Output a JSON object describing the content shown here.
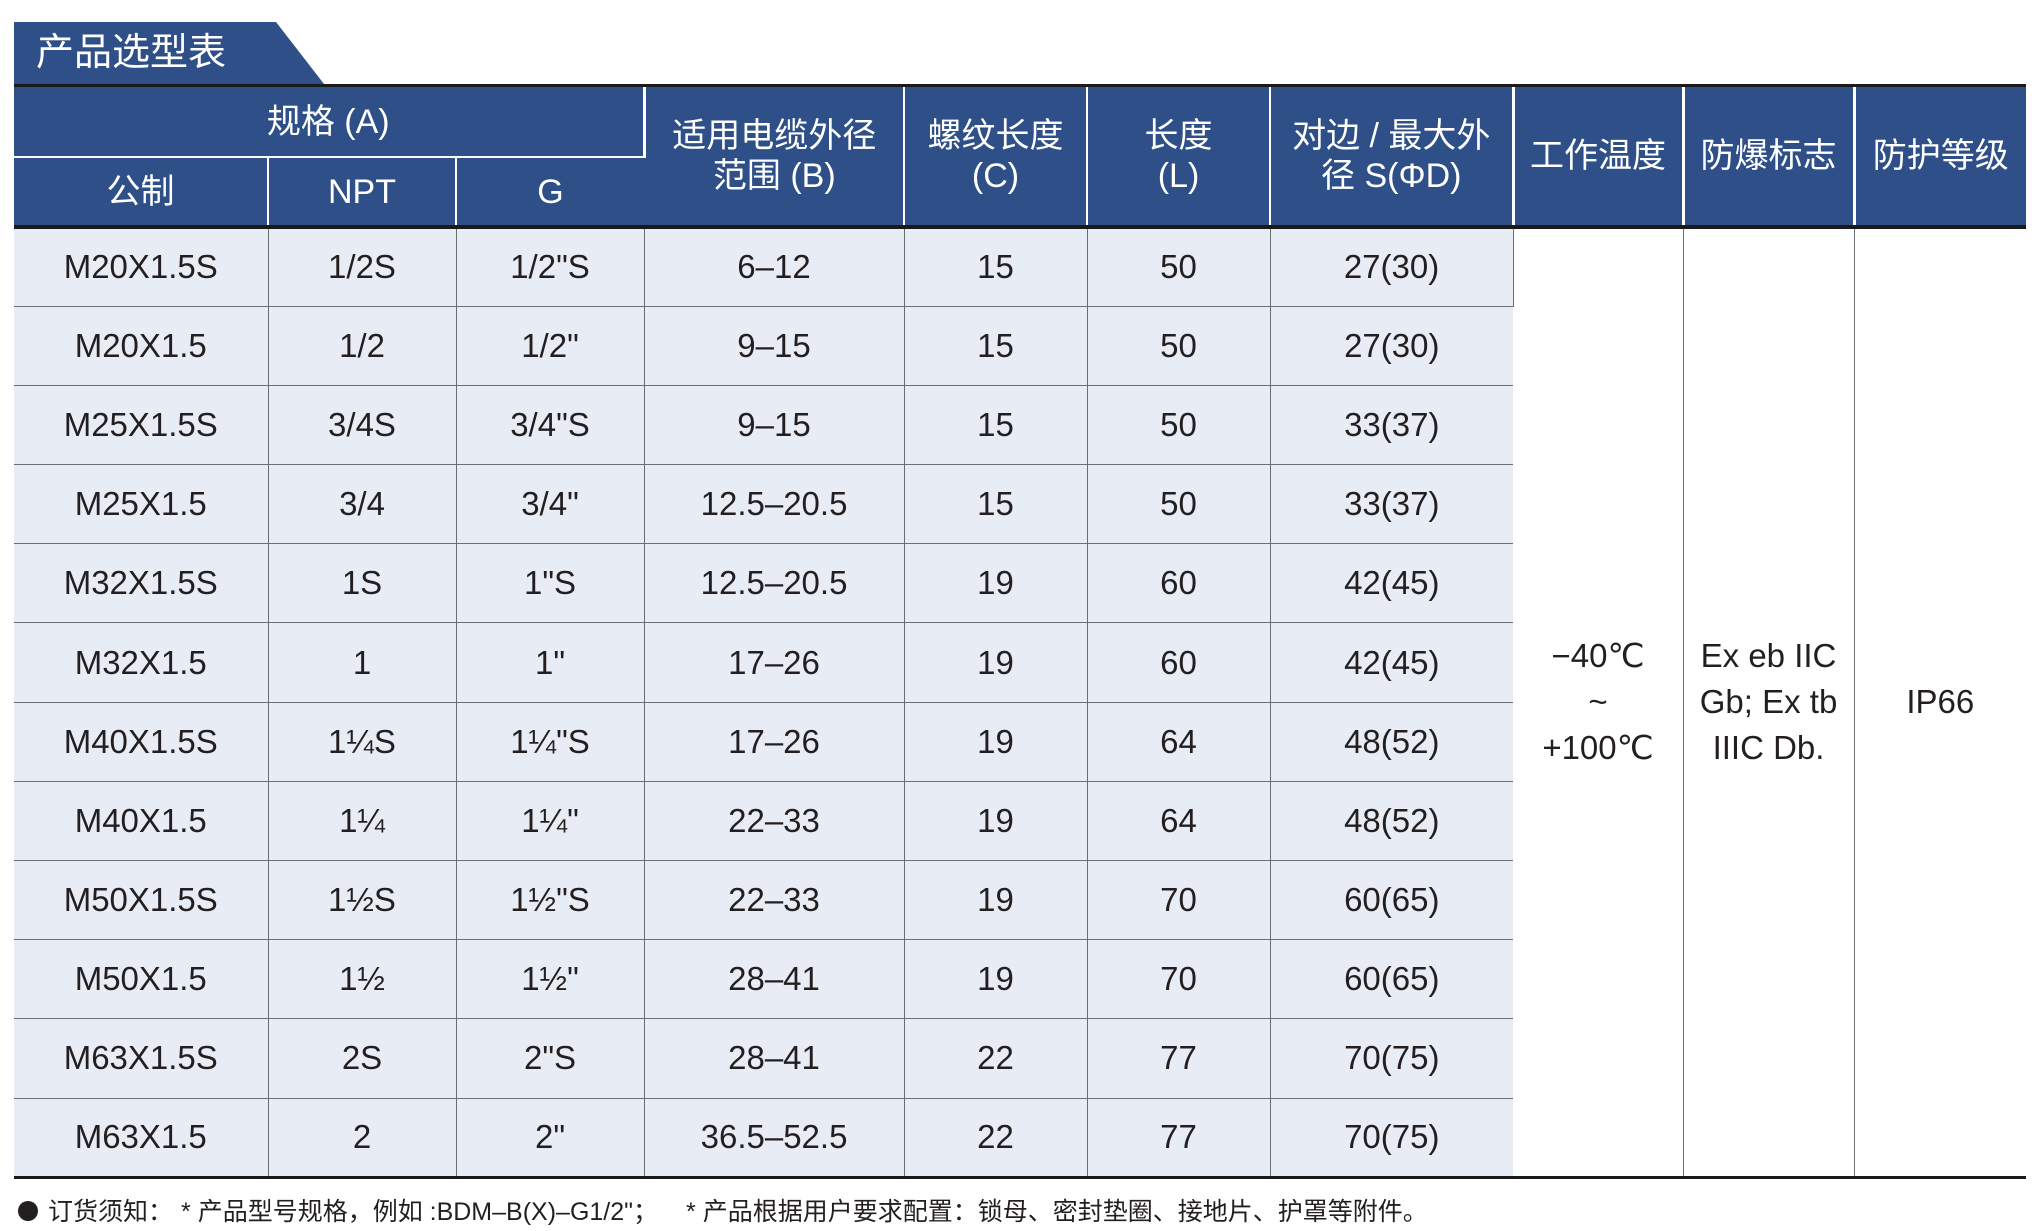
{
  "title": "产品选型表",
  "header": {
    "spec_group": "规格 (A)",
    "spec_cols": [
      "公制",
      "NPT",
      "G"
    ],
    "cable_line1": "适用电缆外径",
    "cable_line2": "范围 (B)",
    "thread_line1": "螺纹长度",
    "thread_line2": "(C)",
    "length_line1": "长度",
    "length_line2": "(L)",
    "across_line1": "对边 / 最大外",
    "across_line2": "径 S(ΦD)",
    "temp": "工作温度",
    "explosion": "防爆标志",
    "protection": "防护等级"
  },
  "rows": [
    {
      "metric": "M20X1.5S",
      "npt": "1/2S",
      "g": "1/2\"S",
      "cable": "6–12",
      "thread": "15",
      "length": "50",
      "across": "27(30)"
    },
    {
      "metric": "M20X1.5",
      "npt": "1/2",
      "g": "1/2\"",
      "cable": "9–15",
      "thread": "15",
      "length": "50",
      "across": "27(30)"
    },
    {
      "metric": "M25X1.5S",
      "npt": "3/4S",
      "g": "3/4\"S",
      "cable": "9–15",
      "thread": "15",
      "length": "50",
      "across": "33(37)"
    },
    {
      "metric": "M25X1.5",
      "npt": "3/4",
      "g": "3/4\"",
      "cable": "12.5–20.5",
      "thread": "15",
      "length": "50",
      "across": "33(37)"
    },
    {
      "metric": "M32X1.5S",
      "npt": "1S",
      "g": "1\"S",
      "cable": "12.5–20.5",
      "thread": "19",
      "length": "60",
      "across": "42(45)"
    },
    {
      "metric": "M32X1.5",
      "npt": "1",
      "g": "1\"",
      "cable": "17–26",
      "thread": "19",
      "length": "60",
      "across": "42(45)"
    },
    {
      "metric": "M40X1.5S",
      "npt": "1¼S",
      "g": "1¼\"S",
      "cable": "17–26",
      "thread": "19",
      "length": "64",
      "across": "48(52)"
    },
    {
      "metric": "M40X1.5",
      "npt": "1¼",
      "g": "1¼\"",
      "cable": "22–33",
      "thread": "19",
      "length": "64",
      "across": "48(52)"
    },
    {
      "metric": "M50X1.5S",
      "npt": "1½S",
      "g": "1½\"S",
      "cable": "22–33",
      "thread": "19",
      "length": "70",
      "across": "60(65)"
    },
    {
      "metric": "M50X1.5",
      "npt": "1½",
      "g": "1½\"",
      "cable": "28–41",
      "thread": "19",
      "length": "70",
      "across": "60(65)"
    },
    {
      "metric": "M63X1.5S",
      "npt": "2S",
      "g": "2\"S",
      "cable": "28–41",
      "thread": "22",
      "length": "77",
      "across": "70(75)"
    },
    {
      "metric": "M63X1.5",
      "npt": "2",
      "g": "2\"",
      "cable": "36.5–52.5",
      "thread": "22",
      "length": "77",
      "across": "70(75)"
    }
  ],
  "merged": {
    "temp_line1": "−40℃",
    "temp_line2": "~",
    "temp_line3": "+100℃",
    "explosion_line1": "Ex eb IIC",
    "explosion_line2": "Gb; Ex tb",
    "explosion_line3": "IIIC Db.",
    "protection": "IP66"
  },
  "footnote": {
    "label": "订货须知：",
    "note1": "* 产品型号规格，例如 :BDM–B(X)–G1/2\"；",
    "note2": "* 产品根据用户要求配置：锁母、密封垫圈、接地片、护罩等附件。"
  },
  "colors": {
    "header_bg": "#2e4f87",
    "row_shade": "#e8ecf5",
    "grid_line": "#6d6e71"
  }
}
